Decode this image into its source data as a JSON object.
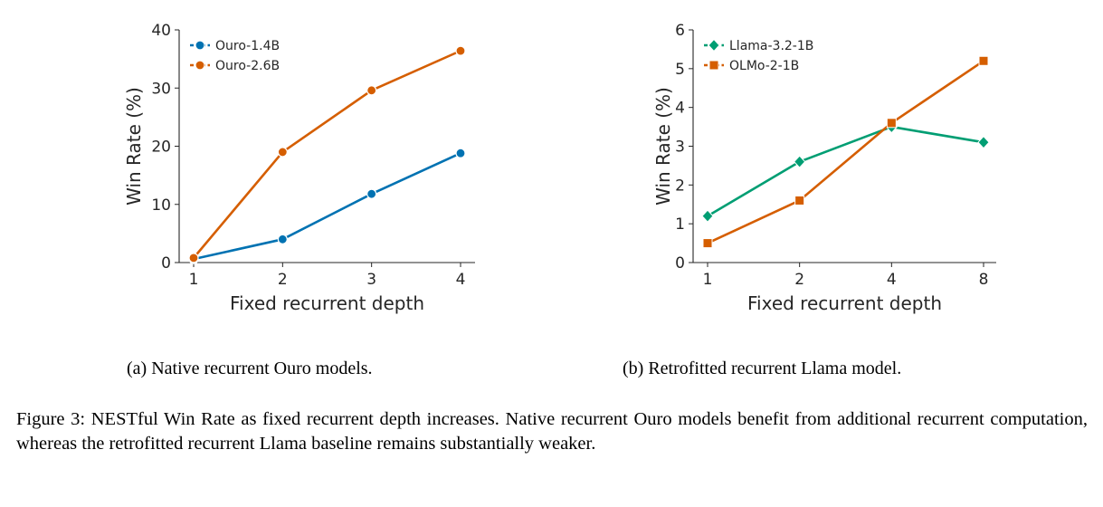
{
  "chart_data": [
    {
      "type": "line",
      "xlabel": "Fixed recurrent depth",
      "ylabel": "Win Rate (%)",
      "categories": [
        "1",
        "2",
        "3",
        "4"
      ],
      "ylim": [
        0,
        40
      ],
      "yticks": [
        0,
        10,
        20,
        30,
        40
      ],
      "grid": false,
      "legend": "top-left",
      "series": [
        {
          "name": "Ouro-1.4B",
          "values": [
            0.6,
            4.0,
            11.8,
            18.8
          ],
          "color": "#0072b2",
          "marker": "circle"
        },
        {
          "name": "Ouro-2.6B",
          "values": [
            0.8,
            19.0,
            29.6,
            36.4
          ],
          "color": "#d55e00",
          "marker": "circle"
        }
      ]
    },
    {
      "type": "line",
      "xlabel": "Fixed recurrent depth",
      "ylabel": "Win Rate (%)",
      "categories": [
        "1",
        "2",
        "4",
        "8"
      ],
      "ylim": [
        0,
        6
      ],
      "yticks": [
        0,
        1,
        2,
        3,
        4,
        5,
        6
      ],
      "grid": false,
      "legend": "top-left",
      "series": [
        {
          "name": "Llama-3.2-1B",
          "values": [
            1.2,
            2.6,
            3.5,
            3.1
          ],
          "color": "#009e73",
          "marker": "diamond"
        },
        {
          "name": "OLMo-2-1B",
          "values": [
            0.5,
            1.6,
            3.6,
            5.2
          ],
          "color": "#d55e00",
          "marker": "square"
        }
      ]
    }
  ],
  "captions": {
    "a": "(a) Native recurrent Ouro models.",
    "b": "(b) Retrofitted recurrent Llama model.",
    "figure": "Figure 3: NESTful Win Rate as fixed recurrent depth increases. Native recurrent Ouro models benefit from additional recurrent computation, whereas the retrofitted recurrent Llama baseline remains substantially weaker."
  }
}
